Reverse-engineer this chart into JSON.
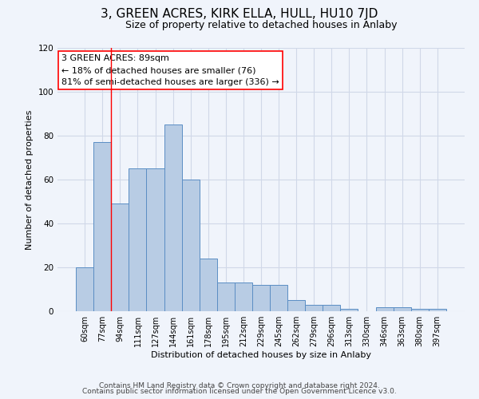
{
  "title": "3, GREEN ACRES, KIRK ELLA, HULL, HU10 7JD",
  "subtitle": "Size of property relative to detached houses in Anlaby",
  "xlabel": "Distribution of detached houses by size in Anlaby",
  "ylabel": "Number of detached properties",
  "categories": [
    "60sqm",
    "77sqm",
    "94sqm",
    "111sqm",
    "127sqm",
    "144sqm",
    "161sqm",
    "178sqm",
    "195sqm",
    "212sqm",
    "229sqm",
    "245sqm",
    "262sqm",
    "279sqm",
    "296sqm",
    "313sqm",
    "330sqm",
    "346sqm",
    "363sqm",
    "380sqm",
    "397sqm"
  ],
  "values": [
    20,
    77,
    49,
    65,
    65,
    85,
    60,
    24,
    13,
    13,
    12,
    12,
    5,
    3,
    3,
    1,
    0,
    2,
    2,
    1,
    1
  ],
  "bar_color": "#b8cce4",
  "bar_edge_color": "#5b8ec4",
  "ylim": [
    0,
    120
  ],
  "yticks": [
    0,
    20,
    40,
    60,
    80,
    100,
    120
  ],
  "vline_x": 1.5,
  "annotation_title": "3 GREEN ACRES: 89sqm",
  "annotation_line1": "← 18% of detached houses are smaller (76)",
  "annotation_line2": "81% of semi-detached houses are larger (336) →",
  "footnote1": "Contains HM Land Registry data © Crown copyright and database right 2024.",
  "footnote2": "Contains public sector information licensed under the Open Government Licence v3.0.",
  "grid_color": "#d0d8e8",
  "background_color": "#f0f4fb",
  "title_fontsize": 11,
  "subtitle_fontsize": 9,
  "annotation_fontsize": 8,
  "footnote_fontsize": 6.5,
  "ylabel_fontsize": 8,
  "xlabel_fontsize": 8
}
